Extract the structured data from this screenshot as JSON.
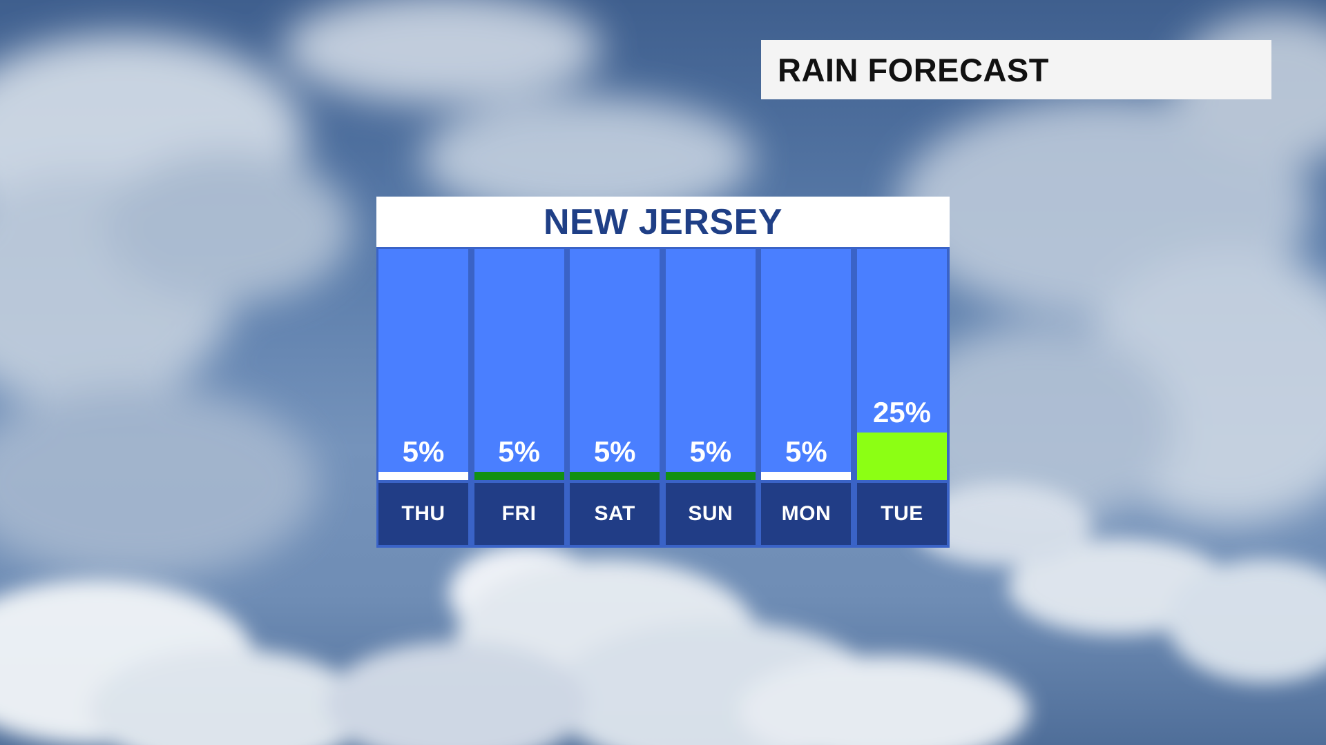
{
  "header": {
    "title": "RAIN FORECAST"
  },
  "panel": {
    "region": "NEW JERSEY"
  },
  "colors": {
    "column_bg": "#4a7fff",
    "day_box": "#213d86",
    "header_text": "#1f3f86"
  },
  "chart_data": {
    "type": "bar",
    "title": "NEW JERSEY",
    "xlabel": "",
    "ylabel": "",
    "categories": [
      "THU",
      "FRI",
      "SAT",
      "SUN",
      "MON",
      "TUE"
    ],
    "values": [
      5,
      5,
      5,
      5,
      5,
      25
    ],
    "labels": [
      "5%",
      "5%",
      "5%",
      "5%",
      "5%",
      "25%"
    ],
    "bar_colors": [
      "#ffffff",
      "#129012",
      "#129012",
      "#129012",
      "#ffffff",
      "#8cff14"
    ],
    "ylim": [
      0,
      100
    ],
    "grid": false
  }
}
